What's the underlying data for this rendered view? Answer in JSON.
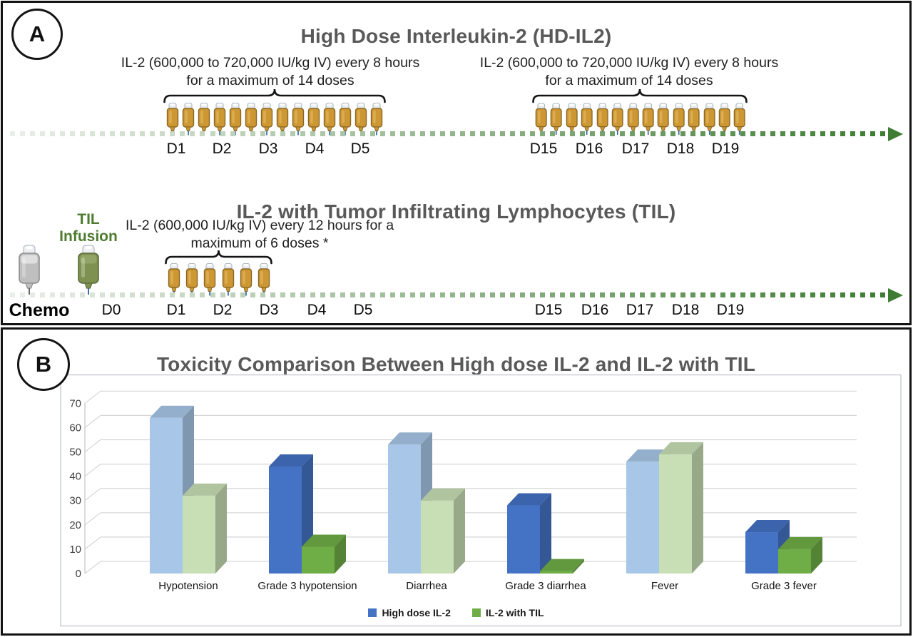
{
  "panel_a": {
    "label": "A",
    "hd": {
      "title": "High Dose Interleukin-2 (HD-IL2)",
      "schedule_note": "IL-2 (600,000 to 720,000 IU/kg IV) every 8 hours for a maximum of 14 doses",
      "doses_per_cycle": 14,
      "cycle1_days": [
        "D1",
        "D2",
        "D3",
        "D4",
        "D5"
      ],
      "cycle2_days": [
        "D15",
        "D16",
        "D17",
        "D18",
        "D19"
      ]
    },
    "til": {
      "title": "IL-2 with Tumor Infiltrating Lymphocytes (TIL)",
      "infusion_label": "TIL Infusion",
      "schedule_note": "IL-2 (600,000 IU/kg IV) every 12 hours for a maximum of 6 doses *",
      "doses": 6,
      "chemo_label": "Chemo",
      "day_labels": [
        "D0",
        "D1",
        "D2",
        "D3",
        "D4",
        "D5",
        "D15",
        "D16",
        "D17",
        "D18",
        "D19"
      ]
    },
    "timeline": {
      "color_start": "#E9EFE7",
      "color_end": "#3E7D33",
      "arrow_color": "#3E7D33"
    },
    "icons": {
      "il2_dose_bag": "iv-bag-gold-icon",
      "chemo_bag": "iv-bag-gray-icon",
      "til_bag": "iv-bag-green-icon"
    },
    "colors": {
      "il2_bag_fill": "#CD9733",
      "il2_bag_stroke": "#8A6823",
      "chemo_bag_fill": "#BFBFBF",
      "til_bag_fill": "#7E9150",
      "til_label_green": "#4E7B2F"
    }
  },
  "panel_b": {
    "label": "B"
  },
  "chart_data": {
    "type": "bar",
    "style": "3d-clustered",
    "title": "Toxicity Comparison Between High dose IL-2 and IL-2 with TIL",
    "categories": [
      "Hypotension",
      "Grade 3 hypotension",
      "Diarrhea",
      "Grade 3 diarrhea",
      "Fever",
      "Grade 3 fever"
    ],
    "series": [
      {
        "name": "High dose IL-2",
        "legend_color": "#4472C4",
        "values": [
          64,
          44,
          53,
          28,
          46,
          17
        ],
        "bar_colors": [
          "#A8C7E8",
          "#4472C4",
          "#A8C7E8",
          "#4472C4",
          "#A8C7E8",
          "#4472C4"
        ]
      },
      {
        "name": "IL-2 with TIL",
        "legend_color": "#70AD47",
        "values": [
          32,
          11,
          30,
          1,
          49,
          10
        ],
        "bar_colors": [
          "#C8DFB6",
          "#6FAD47",
          "#C8DFB6",
          "#6FAD47",
          "#C8DFB6",
          "#6FAD47"
        ]
      }
    ],
    "xlabel": "",
    "ylabel": "",
    "values_unit": "percent",
    "ylim": [
      0,
      70
    ],
    "yticks": [
      0,
      10,
      20,
      30,
      40,
      50,
      60,
      70
    ],
    "gridlines": true,
    "legend_position": "bottom",
    "grid_color": "#D6D6D6",
    "title_color": "#595959"
  }
}
